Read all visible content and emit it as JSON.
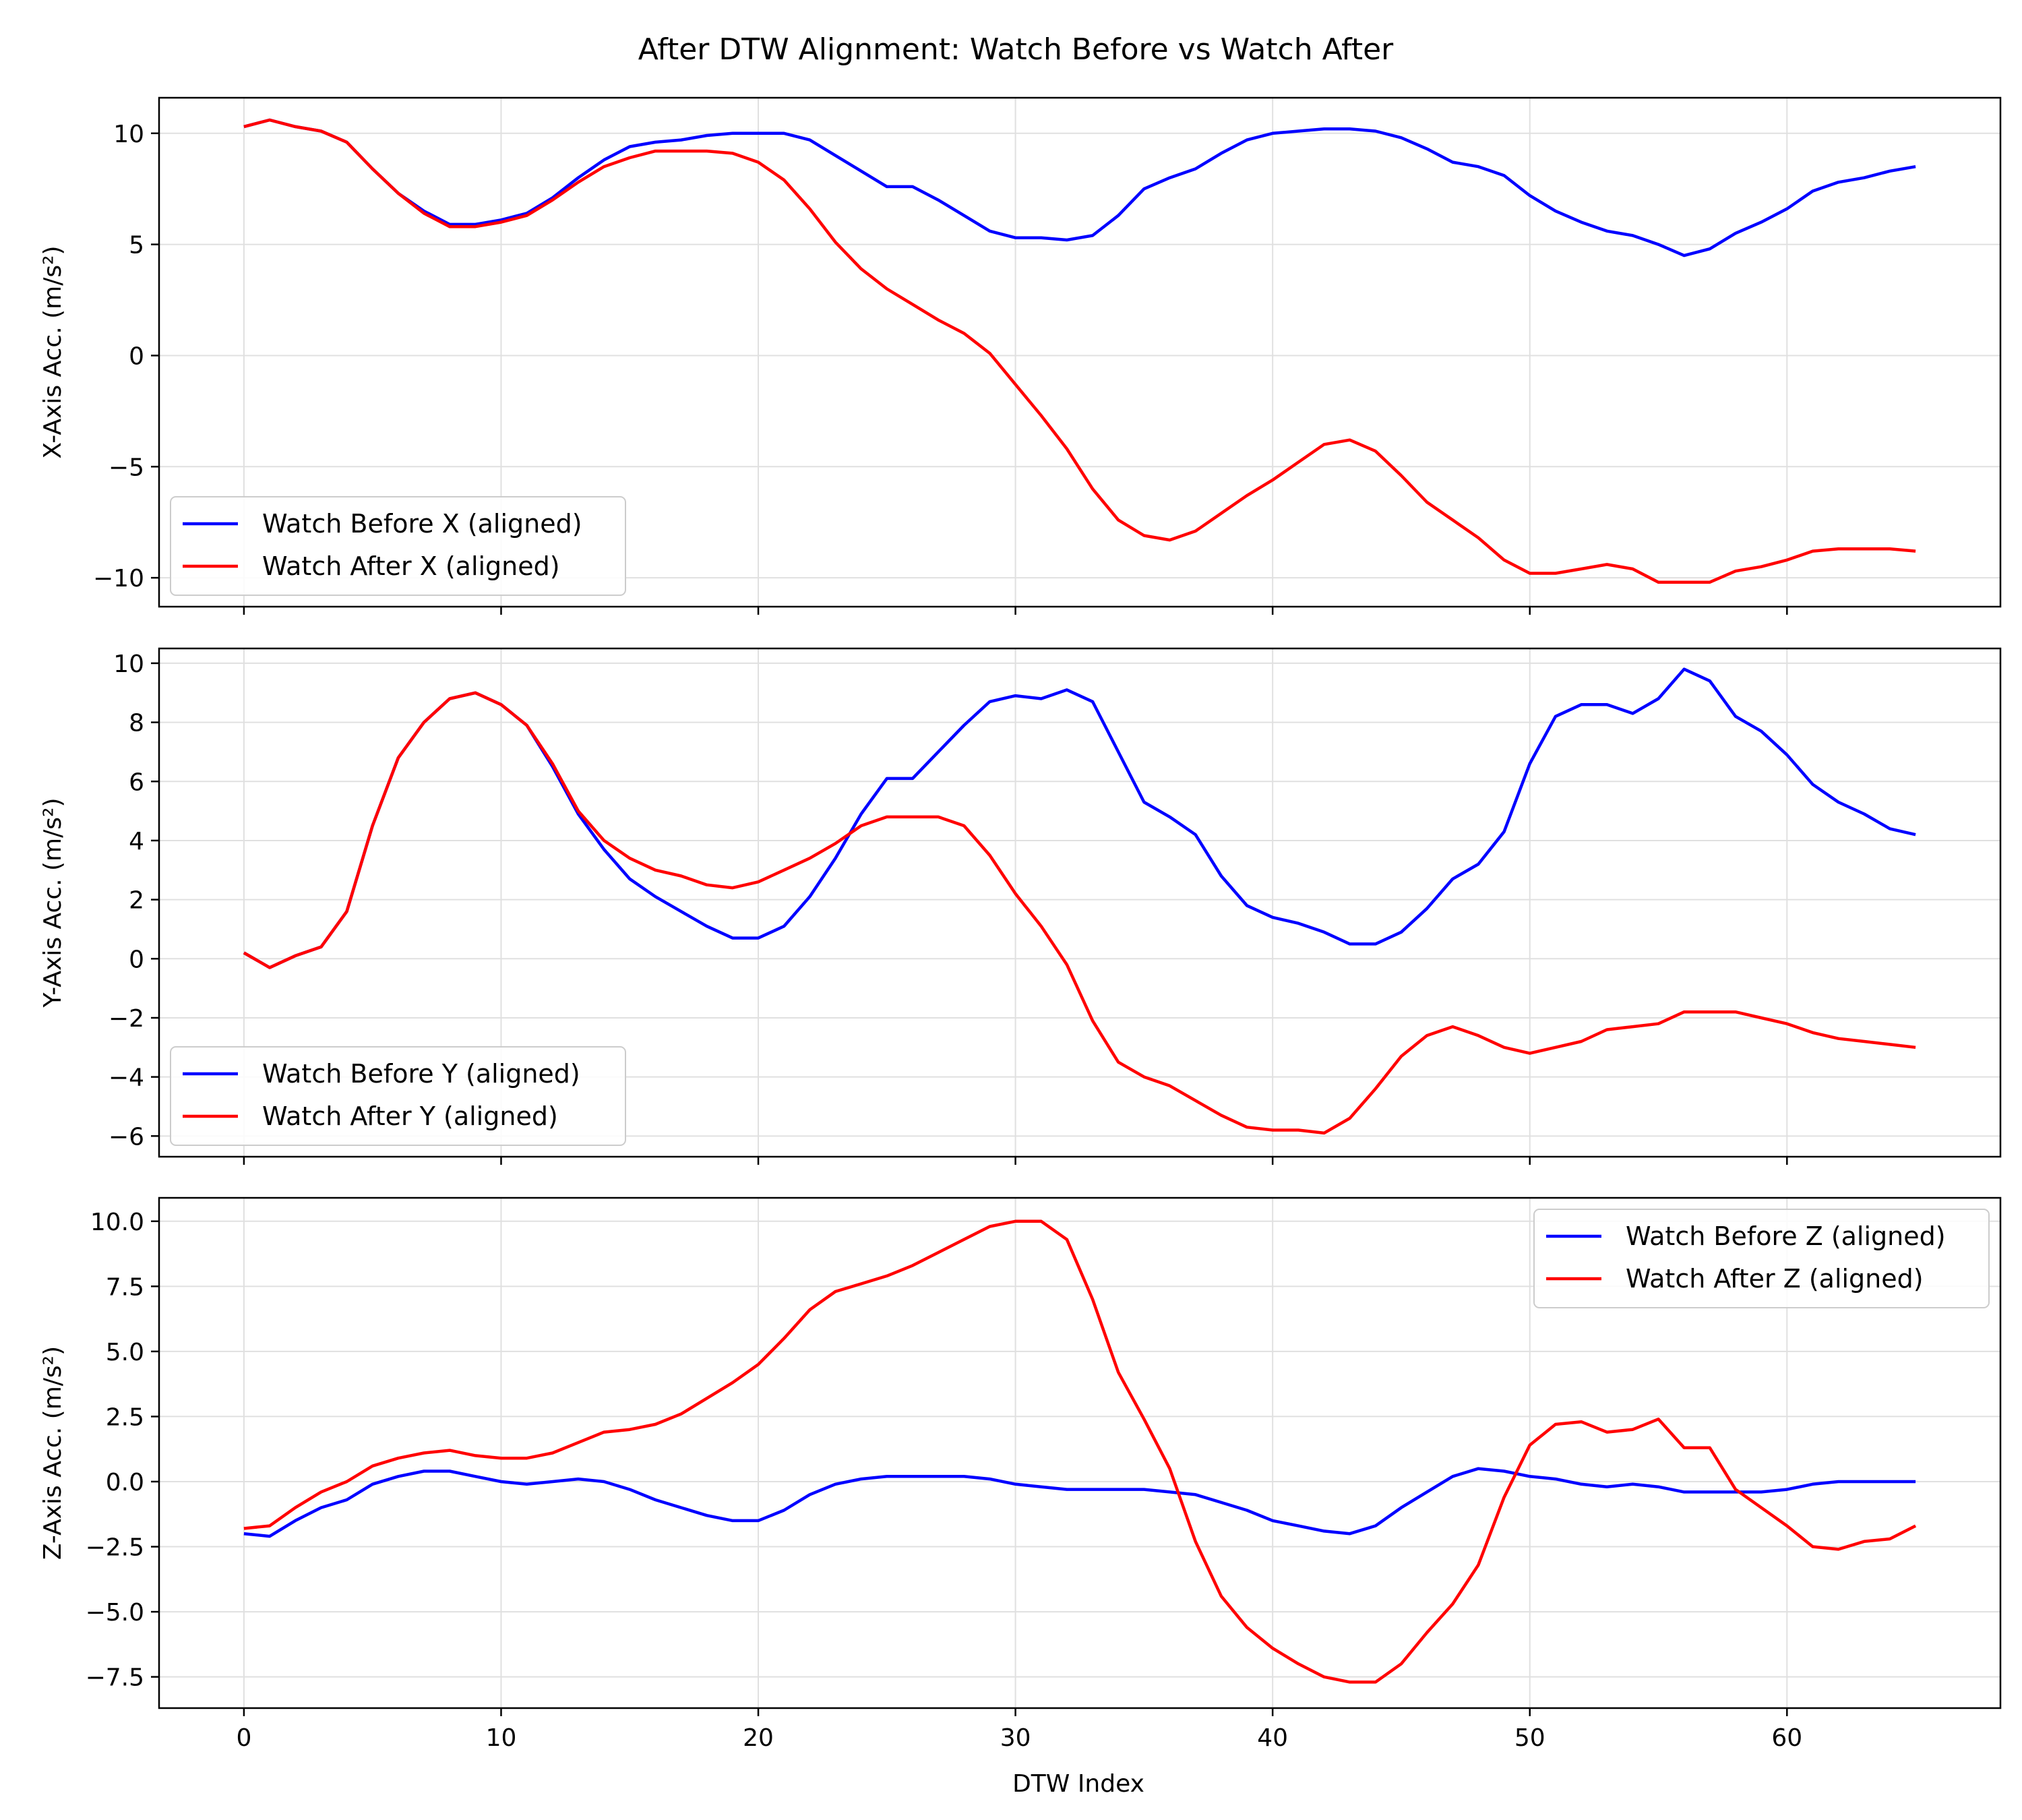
{
  "figure": {
    "title": "After DTW Alignment: Watch Before vs Watch After",
    "xlabel": "DTW Index"
  },
  "colors": {
    "before": "#0000ff",
    "after": "#ff0000",
    "grid": "#e0e0e0"
  },
  "chart_data": [
    {
      "type": "line",
      "ylabel": "X-Axis Acc. (m/s²)",
      "xlim": [
        -3.3,
        68.3
      ],
      "ylim": [
        -11.3,
        11.6
      ],
      "xticks": [
        0,
        10,
        20,
        30,
        40,
        50,
        60
      ],
      "yticks": [
        -10,
        -5,
        0,
        5,
        10
      ],
      "legend_position": "lower-left",
      "grid": true,
      "series": [
        {
          "name": "Watch Before X (aligned)",
          "color_key": "before",
          "values": [
            10.3,
            10.6,
            10.3,
            10.1,
            9.6,
            8.4,
            7.3,
            6.5,
            5.9,
            5.9,
            6.1,
            6.4,
            7.1,
            8.0,
            8.8,
            9.4,
            9.6,
            9.7,
            9.9,
            10.0,
            10.0,
            10.0,
            9.7,
            9.0,
            8.3,
            7.6,
            7.6,
            7.0,
            6.3,
            5.6,
            5.3,
            5.3,
            5.2,
            5.4,
            6.3,
            7.5,
            8.0,
            8.4,
            9.1,
            9.7,
            10.0,
            10.1,
            10.2,
            10.2,
            10.1,
            9.8,
            9.3,
            8.7,
            8.5,
            8.1,
            7.2,
            6.5,
            6.0,
            5.6,
            5.4,
            5.0,
            4.5,
            4.8,
            5.5,
            6.0,
            6.6,
            7.4,
            7.8,
            8.0,
            8.3,
            8.5
          ]
        },
        {
          "name": "Watch After X (aligned)",
          "color_key": "after",
          "values": [
            10.3,
            10.6,
            10.3,
            10.1,
            9.6,
            8.4,
            7.3,
            6.4,
            5.8,
            5.8,
            6.0,
            6.3,
            7.0,
            7.8,
            8.5,
            8.9,
            9.2,
            9.2,
            9.2,
            9.1,
            8.7,
            7.9,
            6.6,
            5.1,
            3.9,
            3.0,
            2.3,
            1.6,
            1.0,
            0.1,
            -1.3,
            -2.7,
            -4.2,
            -6.0,
            -7.4,
            -8.1,
            -8.3,
            -7.9,
            -7.1,
            -6.3,
            -5.6,
            -4.8,
            -4.0,
            -3.8,
            -4.3,
            -5.4,
            -6.6,
            -7.4,
            -8.2,
            -9.2,
            -9.8,
            -9.8,
            -9.6,
            -9.4,
            -9.6,
            -10.2,
            -10.2,
            -10.2,
            -9.7,
            -9.5,
            -9.2,
            -8.8,
            -8.7,
            -8.7,
            -8.7,
            -8.8
          ]
        }
      ]
    },
    {
      "type": "line",
      "ylabel": "Y-Axis Acc. (m/s²)",
      "xlim": [
        -3.3,
        68.3
      ],
      "ylim": [
        -6.7,
        10.5
      ],
      "xticks": [
        0,
        10,
        20,
        30,
        40,
        50,
        60
      ],
      "yticks": [
        -6,
        -4,
        -2,
        0,
        2,
        4,
        6,
        8,
        10
      ],
      "legend_position": "lower-left",
      "grid": true,
      "series": [
        {
          "name": "Watch Before Y (aligned)",
          "color_key": "before",
          "values": [
            0.2,
            -0.3,
            0.1,
            0.4,
            1.6,
            4.5,
            6.8,
            8.0,
            8.8,
            9.0,
            8.6,
            7.9,
            6.5,
            4.9,
            3.7,
            2.7,
            2.1,
            1.6,
            1.1,
            0.7,
            0.7,
            1.1,
            2.1,
            3.4,
            4.9,
            6.1,
            6.1,
            7.0,
            7.9,
            8.7,
            8.9,
            8.8,
            9.1,
            8.7,
            7.0,
            5.3,
            4.8,
            4.2,
            2.8,
            1.8,
            1.4,
            1.2,
            0.9,
            0.5,
            0.5,
            0.9,
            1.7,
            2.7,
            3.2,
            4.3,
            6.6,
            8.2,
            8.6,
            8.6,
            8.3,
            8.8,
            9.8,
            9.4,
            8.2,
            7.7,
            6.9,
            5.9,
            5.3,
            4.9,
            4.4,
            4.2
          ]
        },
        {
          "name": "Watch After Y (aligned)",
          "color_key": "after",
          "values": [
            0.2,
            -0.3,
            0.1,
            0.4,
            1.6,
            4.5,
            6.8,
            8.0,
            8.8,
            9.0,
            8.6,
            7.9,
            6.6,
            5.0,
            4.0,
            3.4,
            3.0,
            2.8,
            2.5,
            2.4,
            2.6,
            3.0,
            3.4,
            3.9,
            4.5,
            4.8,
            4.8,
            4.8,
            4.5,
            3.5,
            2.2,
            1.1,
            -0.2,
            -2.1,
            -3.5,
            -4.0,
            -4.3,
            -4.8,
            -5.3,
            -5.7,
            -5.8,
            -5.8,
            -5.9,
            -5.4,
            -4.4,
            -3.3,
            -2.6,
            -2.3,
            -2.6,
            -3.0,
            -3.2,
            -3.0,
            -2.8,
            -2.4,
            -2.3,
            -2.2,
            -1.8,
            -1.8,
            -1.8,
            -2.0,
            -2.2,
            -2.5,
            -2.7,
            -2.8,
            -2.9,
            -3.0
          ]
        }
      ]
    },
    {
      "type": "line",
      "ylabel": "Z-Axis Acc. (m/s²)",
      "xlim": [
        -3.3,
        68.3
      ],
      "ylim": [
        -8.7,
        10.9
      ],
      "xticks": [
        0,
        10,
        20,
        30,
        40,
        50,
        60
      ],
      "yticks": [
        -7.5,
        -5.0,
        -2.5,
        0.0,
        2.5,
        5.0,
        7.5,
        10.0
      ],
      "legend_position": "upper-right",
      "grid": true,
      "series": [
        {
          "name": "Watch Before Z (aligned)",
          "color_key": "before",
          "values": [
            -2.0,
            -2.1,
            -1.5,
            -1.0,
            -0.7,
            -0.1,
            0.2,
            0.4,
            0.4,
            0.2,
            0.0,
            -0.1,
            0.0,
            0.1,
            0.0,
            -0.3,
            -0.7,
            -1.0,
            -1.3,
            -1.5,
            -1.5,
            -1.1,
            -0.5,
            -0.1,
            0.1,
            0.2,
            0.2,
            0.2,
            0.2,
            0.1,
            -0.1,
            -0.2,
            -0.3,
            -0.3,
            -0.3,
            -0.3,
            -0.4,
            -0.5,
            -0.8,
            -1.1,
            -1.5,
            -1.7,
            -1.9,
            -2.0,
            -1.7,
            -1.0,
            -0.4,
            0.2,
            0.5,
            0.4,
            0.2,
            0.1,
            -0.1,
            -0.2,
            -0.1,
            -0.2,
            -0.4,
            -0.4,
            -0.4,
            -0.4,
            -0.3,
            -0.1,
            0.0,
            0.0,
            0.0,
            0.0
          ]
        },
        {
          "name": "Watch After Z (aligned)",
          "color_key": "after",
          "values": [
            -1.8,
            -1.7,
            -1.0,
            -0.4,
            0.0,
            0.6,
            0.9,
            1.1,
            1.2,
            1.0,
            0.9,
            0.9,
            1.1,
            1.5,
            1.9,
            2.0,
            2.2,
            2.6,
            3.2,
            3.8,
            4.5,
            5.5,
            6.6,
            7.3,
            7.6,
            7.9,
            8.3,
            8.8,
            9.3,
            9.8,
            10.0,
            10.0,
            9.3,
            7.0,
            4.2,
            2.4,
            0.5,
            -2.3,
            -4.4,
            -5.6,
            -6.4,
            -7.0,
            -7.5,
            -7.7,
            -7.7,
            -7.0,
            -5.8,
            -4.7,
            -3.2,
            -0.6,
            1.4,
            2.2,
            2.3,
            1.9,
            2.0,
            2.4,
            1.3,
            1.3,
            -0.3,
            -1.0,
            -1.7,
            -2.5,
            -2.6,
            -2.3,
            -2.2,
            -1.7
          ]
        }
      ]
    }
  ]
}
